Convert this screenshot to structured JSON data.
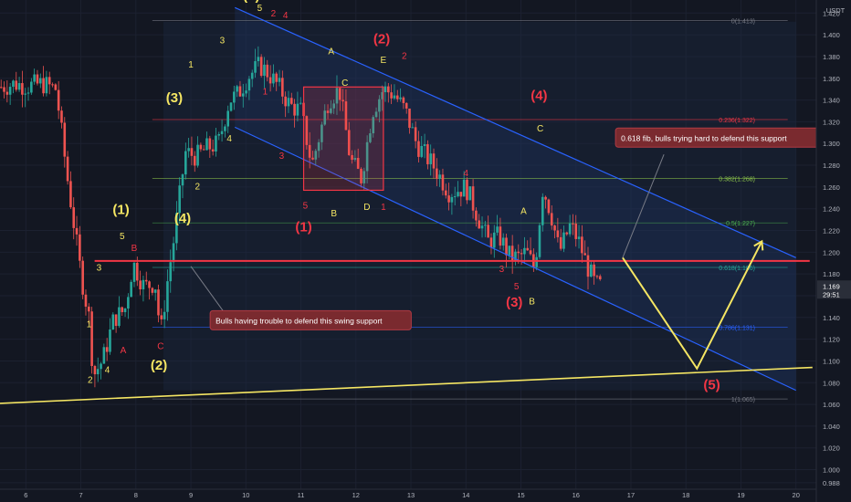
{
  "chart_data": {
    "type": "candlestick",
    "currency": "USDT",
    "x_ticks": [
      "6",
      "7",
      "8",
      "9",
      "10",
      "11",
      "12",
      "13",
      "14",
      "15",
      "16",
      "17",
      "18",
      "19",
      "20"
    ],
    "y_ticks": [
      "1.420",
      "1.400",
      "1.380",
      "1.360",
      "1.340",
      "1.320",
      "1.300",
      "1.280",
      "1.260",
      "1.240",
      "1.220",
      "1.200",
      "1.180",
      "1.160",
      "1.140",
      "1.120",
      "1.100",
      "1.080",
      "1.060",
      "1.040",
      "1.020",
      "1.000",
      "0.988"
    ],
    "ylim": [
      0.982,
      1.432
    ],
    "xlim": [
      5.53,
      20.37
    ],
    "current_price": "1.169",
    "timer": "29:51",
    "colors": {
      "background": "#131722",
      "up": "#26a69a",
      "down": "#ef5350",
      "channel": "#2962ff",
      "support": "#f23645",
      "trendline": "#f5e663",
      "wave_yellow": "#f5e663",
      "wave_red": "#f23645",
      "callout": "#7a2a2f"
    },
    "price_anchors": [
      [
        5.55,
        1.352
      ],
      [
        5.8,
        1.355
      ],
      [
        6.05,
        1.353
      ],
      [
        6.3,
        1.355
      ],
      [
        6.55,
        1.35
      ],
      [
        6.75,
        1.27
      ],
      [
        7.0,
        1.18
      ],
      [
        7.17,
        1.134
      ],
      [
        7.22,
        1.086
      ],
      [
        7.4,
        1.101
      ],
      [
        7.6,
        1.139
      ],
      [
        7.8,
        1.147
      ],
      [
        7.95,
        1.19
      ],
      [
        8.15,
        1.168
      ],
      [
        8.35,
        1.172
      ],
      [
        8.45,
        1.124
      ],
      [
        8.55,
        1.165
      ],
      [
        8.7,
        1.215
      ],
      [
        8.9,
        1.292
      ],
      [
        9.1,
        1.288
      ],
      [
        9.3,
        1.296
      ],
      [
        9.5,
        1.3
      ],
      [
        9.7,
        1.34
      ],
      [
        9.85,
        1.345
      ],
      [
        10.05,
        1.362
      ],
      [
        10.25,
        1.372
      ],
      [
        10.4,
        1.365
      ],
      [
        10.6,
        1.352
      ],
      [
        10.8,
        1.335
      ],
      [
        11.0,
        1.33
      ],
      [
        11.2,
        1.28
      ],
      [
        11.5,
        1.34
      ],
      [
        11.7,
        1.35
      ],
      [
        11.9,
        1.285
      ],
      [
        12.1,
        1.268
      ],
      [
        12.3,
        1.33
      ],
      [
        12.5,
        1.35
      ],
      [
        12.7,
        1.345
      ],
      [
        12.9,
        1.33
      ],
      [
        13.1,
        1.3
      ],
      [
        13.4,
        1.28
      ],
      [
        13.7,
        1.255
      ],
      [
        14.0,
        1.26
      ],
      [
        14.2,
        1.235
      ],
      [
        14.4,
        1.21
      ],
      [
        14.6,
        1.215
      ],
      [
        14.8,
        1.196
      ],
      [
        14.95,
        1.195
      ],
      [
        15.1,
        1.2
      ],
      [
        15.25,
        1.185
      ],
      [
        15.4,
        1.26
      ],
      [
        15.55,
        1.235
      ],
      [
        15.7,
        1.2
      ],
      [
        15.9,
        1.225
      ],
      [
        16.05,
        1.21
      ],
      [
        16.2,
        1.188
      ],
      [
        16.35,
        1.17
      ],
      [
        16.45,
        1.169
      ]
    ],
    "fib_levels": [
      {
        "label": "0(1.413)",
        "value": 1.413
      },
      {
        "label": "0.236(1.322)",
        "value": 1.322
      },
      {
        "label": "0.382(1.268)",
        "value": 1.268
      },
      {
        "label": "0.5(1.227)",
        "value": 1.227
      },
      {
        "label": "0.618(1.186)",
        "value": 1.186
      },
      {
        "label": "0.786(1.131)",
        "value": 1.131
      },
      {
        "label": "1(1.065)",
        "value": 1.065
      }
    ],
    "fib_x_range": [
      8.3,
      19.85
    ],
    "support_line": {
      "y": 1.192,
      "x0": 7.25,
      "x1": 20.25
    },
    "channel": {
      "upper": [
        [
          9.8,
          1.425
        ],
        [
          20.0,
          1.195
        ]
      ],
      "lower": [
        [
          9.8,
          1.315
        ],
        [
          20.0,
          1.073
        ]
      ],
      "fill": [
        [
          8.5,
          1.412
        ],
        [
          20.0,
          1.412
        ],
        [
          20.0,
          1.073
        ],
        [
          8.5,
          1.073
        ]
      ]
    },
    "rect_box": {
      "x0": 11.05,
      "x1": 12.5,
      "y0": 1.352,
      "y1": 1.257
    },
    "trendline": [
      [
        5.53,
        1.061
      ],
      [
        20.3,
        1.094
      ]
    ],
    "projection_path": [
      [
        16.85,
        1.195
      ],
      [
        18.2,
        1.093
      ],
      [
        19.38,
        1.21
      ]
    ],
    "callouts": [
      {
        "text": "0.618 fib, bulls trying hard to defend this support",
        "x": 16.72,
        "y": 1.305,
        "line_from": [
          16.85,
          1.195
        ],
        "line_to": [
          17.6,
          1.29
        ]
      },
      {
        "text": "Bulls having trouble to defend this swing support",
        "x": 9.35,
        "y": 1.137,
        "line_from": [
          9.0,
          1.187
        ],
        "line_to": [
          9.6,
          1.145
        ]
      }
    ],
    "wave_labels": [
      {
        "t": "(5)",
        "x": 10.1,
        "y": 1.432,
        "c": "yellow",
        "size": 15
      },
      {
        "t": "5",
        "x": 10.25,
        "y": 1.422,
        "c": "yellow",
        "size": 10
      },
      {
        "t": "2",
        "x": 10.5,
        "y": 1.417,
        "c": "red",
        "size": 10
      },
      {
        "t": "4",
        "x": 10.72,
        "y": 1.415,
        "c": "red",
        "size": 10
      },
      {
        "t": "3",
        "x": 9.57,
        "y": 1.392,
        "c": "yellow",
        "size": 10
      },
      {
        "t": "1",
        "x": 9.0,
        "y": 1.37,
        "c": "yellow",
        "size": 10
      },
      {
        "t": "(3)",
        "x": 8.7,
        "y": 1.338,
        "c": "yellow",
        "size": 15
      },
      {
        "t": "4",
        "x": 9.7,
        "y": 1.302,
        "c": "yellow",
        "size": 10
      },
      {
        "t": "2",
        "x": 9.12,
        "y": 1.258,
        "c": "yellow",
        "size": 10
      },
      {
        "t": "(4)",
        "x": 8.85,
        "y": 1.227,
        "c": "yellow",
        "size": 15
      },
      {
        "t": "(1)",
        "x": 7.73,
        "y": 1.235,
        "c": "yellow",
        "size": 15
      },
      {
        "t": "5",
        "x": 7.75,
        "y": 1.212,
        "c": "yellow",
        "size": 10
      },
      {
        "t": "3",
        "x": 7.33,
        "y": 1.183,
        "c": "yellow",
        "size": 10
      },
      {
        "t": "1",
        "x": 7.15,
        "y": 1.131,
        "c": "yellow",
        "size": 10
      },
      {
        "t": "4",
        "x": 7.48,
        "y": 1.089,
        "c": "yellow",
        "size": 10
      },
      {
        "t": "2",
        "x": 7.17,
        "y": 1.08,
        "c": "yellow",
        "size": 10
      },
      {
        "t": "B",
        "x": 7.97,
        "y": 1.201,
        "c": "red",
        "size": 10
      },
      {
        "t": "A",
        "x": 7.77,
        "y": 1.107,
        "c": "red",
        "size": 10
      },
      {
        "t": "C",
        "x": 8.45,
        "y": 1.111,
        "c": "red",
        "size": 10
      },
      {
        "t": "(2)",
        "x": 8.42,
        "y": 1.092,
        "c": "yellow",
        "size": 15
      },
      {
        "t": "1",
        "x": 10.35,
        "y": 1.345,
        "c": "red",
        "size": 10
      },
      {
        "t": "3",
        "x": 10.65,
        "y": 1.286,
        "c": "red",
        "size": 10
      },
      {
        "t": "5",
        "x": 11.08,
        "y": 1.24,
        "c": "red",
        "size": 10
      },
      {
        "t": "(1)",
        "x": 11.05,
        "y": 1.219,
        "c": "red",
        "size": 15
      },
      {
        "t": "A",
        "x": 11.55,
        "y": 1.382,
        "c": "yellow",
        "size": 10
      },
      {
        "t": "C",
        "x": 11.8,
        "y": 1.353,
        "c": "yellow",
        "size": 10
      },
      {
        "t": "B",
        "x": 11.6,
        "y": 1.233,
        "c": "yellow",
        "size": 10
      },
      {
        "t": "D",
        "x": 12.2,
        "y": 1.239,
        "c": "yellow",
        "size": 10
      },
      {
        "t": "1",
        "x": 12.5,
        "y": 1.239,
        "c": "red",
        "size": 10
      },
      {
        "t": "E",
        "x": 12.5,
        "y": 1.374,
        "c": "yellow",
        "size": 10
      },
      {
        "t": "(2)",
        "x": 12.47,
        "y": 1.392,
        "c": "red",
        "size": 15
      },
      {
        "t": "2",
        "x": 12.88,
        "y": 1.378,
        "c": "red",
        "size": 10
      },
      {
        "t": "4",
        "x": 14.0,
        "y": 1.27,
        "c": "red",
        "size": 10
      },
      {
        "t": "3",
        "x": 14.65,
        "y": 1.182,
        "c": "red",
        "size": 10
      },
      {
        "t": "5",
        "x": 14.92,
        "y": 1.166,
        "c": "red",
        "size": 10
      },
      {
        "t": "(3)",
        "x": 14.88,
        "y": 1.15,
        "c": "red",
        "size": 15
      },
      {
        "t": "B",
        "x": 15.2,
        "y": 1.152,
        "c": "yellow",
        "size": 10
      },
      {
        "t": "A",
        "x": 15.05,
        "y": 1.235,
        "c": "yellow",
        "size": 10
      },
      {
        "t": "C",
        "x": 15.35,
        "y": 1.311,
        "c": "yellow",
        "size": 10
      },
      {
        "t": "(4)",
        "x": 15.33,
        "y": 1.34,
        "c": "red",
        "size": 15
      },
      {
        "t": "(5)",
        "x": 18.47,
        "y": 1.074,
        "c": "red",
        "size": 15
      }
    ]
  }
}
